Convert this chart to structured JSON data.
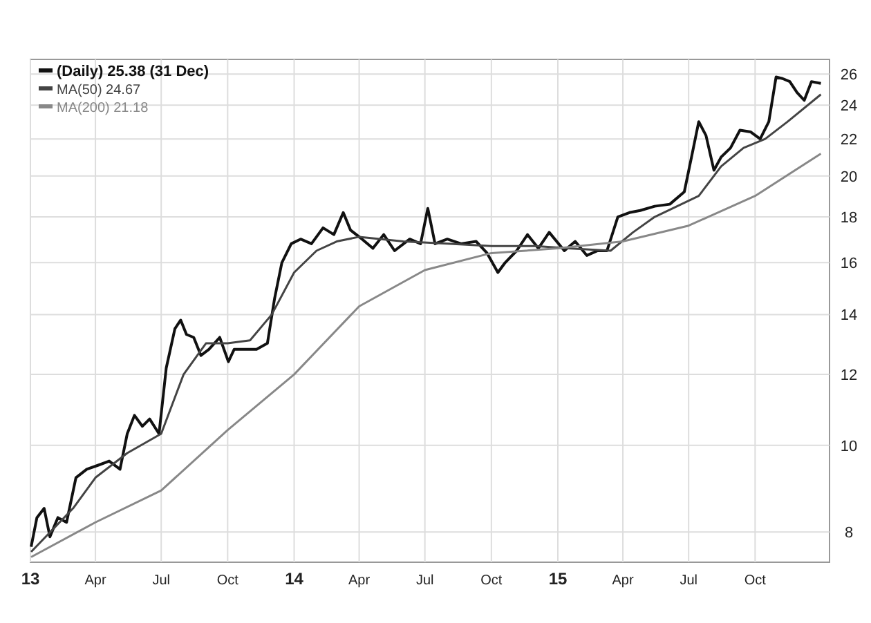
{
  "chart_data": {
    "type": "line",
    "log": "y",
    "grid": true,
    "legend": "top left",
    "xlim": [
      "2013-01-01",
      "2016-01-12"
    ],
    "ylim": [
      7.4,
      27
    ],
    "yticks": [
      8,
      10,
      12,
      14,
      16,
      18,
      20,
      22,
      24,
      26
    ],
    "xticks": [
      {
        "value": "2013-01-01",
        "label": "13"
      },
      {
        "value": "2013-04-01",
        "label": "Apr"
      },
      {
        "value": "2013-07-01",
        "label": "Jul"
      },
      {
        "value": "2013-10-01",
        "label": "Oct"
      },
      {
        "value": "2014-01-01",
        "label": "14"
      },
      {
        "value": "2014-04-01",
        "label": "Apr"
      },
      {
        "value": "2014-07-01",
        "label": "Jul"
      },
      {
        "value": "2014-10-01",
        "label": "Oct"
      },
      {
        "value": "2015-01-01",
        "label": "15"
      },
      {
        "value": "2015-04-01",
        "label": "Apr"
      },
      {
        "value": "2015-07-01",
        "label": "Jul"
      },
      {
        "value": "2015-10-01",
        "label": "Oct"
      }
    ],
    "series": [
      {
        "name": "(Daily) 25.38 (31 Dec)",
        "color": "#111111",
        "x": [
          "2013-01-02",
          "2013-01-10",
          "2013-01-20",
          "2013-01-28",
          "2013-02-08",
          "2013-02-20",
          "2013-03-05",
          "2013-03-20",
          "2013-04-05",
          "2013-04-20",
          "2013-05-05",
          "2013-05-15",
          "2013-05-25",
          "2013-06-05",
          "2013-06-15",
          "2013-06-28",
          "2013-07-08",
          "2013-07-20",
          "2013-07-28",
          "2013-08-05",
          "2013-08-15",
          "2013-08-25",
          "2013-09-05",
          "2013-09-20",
          "2013-10-02",
          "2013-10-10",
          "2013-10-25",
          "2013-11-10",
          "2013-11-25",
          "2013-12-05",
          "2013-12-15",
          "2013-12-28",
          "2014-01-10",
          "2014-01-25",
          "2014-02-10",
          "2014-02-25",
          "2014-03-10",
          "2014-03-20",
          "2014-04-05",
          "2014-04-20",
          "2014-05-05",
          "2014-05-20",
          "2014-06-10",
          "2014-06-25",
          "2014-07-05",
          "2014-07-15",
          "2014-08-01",
          "2014-08-20",
          "2014-09-10",
          "2014-09-25",
          "2014-10-10",
          "2014-10-20",
          "2014-11-05",
          "2014-11-20",
          "2014-12-05",
          "2014-12-20",
          "2015-01-10",
          "2015-01-25",
          "2015-02-10",
          "2015-02-25",
          "2015-03-10",
          "2015-03-25",
          "2015-04-10",
          "2015-04-25",
          "2015-05-15",
          "2015-06-05",
          "2015-06-25",
          "2015-07-05",
          "2015-07-15",
          "2015-07-25",
          "2015-08-05",
          "2015-08-15",
          "2015-08-28",
          "2015-09-10",
          "2015-09-25",
          "2015-10-08",
          "2015-10-20",
          "2015-10-30",
          "2015-11-08",
          "2015-11-18",
          "2015-11-28",
          "2015-12-08",
          "2015-12-18",
          "2015-12-31"
        ],
        "values": [
          7.7,
          8.3,
          8.5,
          7.9,
          8.3,
          8.2,
          9.2,
          9.4,
          9.5,
          9.6,
          9.4,
          10.3,
          10.8,
          10.5,
          10.7,
          10.3,
          12.2,
          13.5,
          13.8,
          13.3,
          13.2,
          12.6,
          12.8,
          13.2,
          12.4,
          12.8,
          12.8,
          12.8,
          13.0,
          14.6,
          16.0,
          16.8,
          17.0,
          16.8,
          17.5,
          17.2,
          18.2,
          17.4,
          17.0,
          16.6,
          17.2,
          16.5,
          17.0,
          16.8,
          18.4,
          16.8,
          17.0,
          16.8,
          16.9,
          16.4,
          15.6,
          16.0,
          16.5,
          17.2,
          16.6,
          17.3,
          16.5,
          16.9,
          16.3,
          16.5,
          16.5,
          18.0,
          18.2,
          18.3,
          18.5,
          18.6,
          19.2,
          21.0,
          23.0,
          22.2,
          20.3,
          21.0,
          21.5,
          22.5,
          22.4,
          22.0,
          23.0,
          25.8,
          25.7,
          25.5,
          24.8,
          24.3,
          25.5,
          25.38
        ]
      },
      {
        "name": "MA(50) 24.67",
        "color": "#444444",
        "x": [
          "2013-01-02",
          "2013-03-01",
          "2013-04-01",
          "2013-05-15",
          "2013-07-01",
          "2013-08-01",
          "2013-09-01",
          "2013-10-01",
          "2013-11-01",
          "2013-12-01",
          "2014-01-01",
          "2014-02-01",
          "2014-03-01",
          "2014-04-01",
          "2014-06-01",
          "2014-08-01",
          "2014-10-01",
          "2014-12-01",
          "2015-01-15",
          "2015-03-15",
          "2015-04-15",
          "2015-05-15",
          "2015-06-15",
          "2015-07-15",
          "2015-08-15",
          "2015-09-15",
          "2015-10-15",
          "2015-11-15",
          "2015-12-31"
        ],
        "values": [
          7.6,
          8.5,
          9.2,
          9.8,
          10.3,
          12.0,
          13.0,
          13.0,
          13.1,
          14.0,
          15.6,
          16.5,
          16.9,
          17.1,
          16.9,
          16.8,
          16.7,
          16.7,
          16.6,
          16.5,
          17.3,
          18.0,
          18.5,
          19.0,
          20.5,
          21.5,
          22.0,
          23.0,
          24.67
        ]
      },
      {
        "name": "MA(200) 21.18",
        "color": "#888888",
        "x": [
          "2013-01-02",
          "2013-04-01",
          "2013-07-01",
          "2013-10-01",
          "2014-01-01",
          "2014-04-01",
          "2014-07-01",
          "2014-10-01",
          "2015-01-01",
          "2015-04-01",
          "2015-07-01",
          "2015-10-01",
          "2015-12-31"
        ],
        "values": [
          7.5,
          8.2,
          8.9,
          10.4,
          12.0,
          14.3,
          15.7,
          16.4,
          16.6,
          16.9,
          17.6,
          19.0,
          21.18
        ]
      }
    ]
  }
}
